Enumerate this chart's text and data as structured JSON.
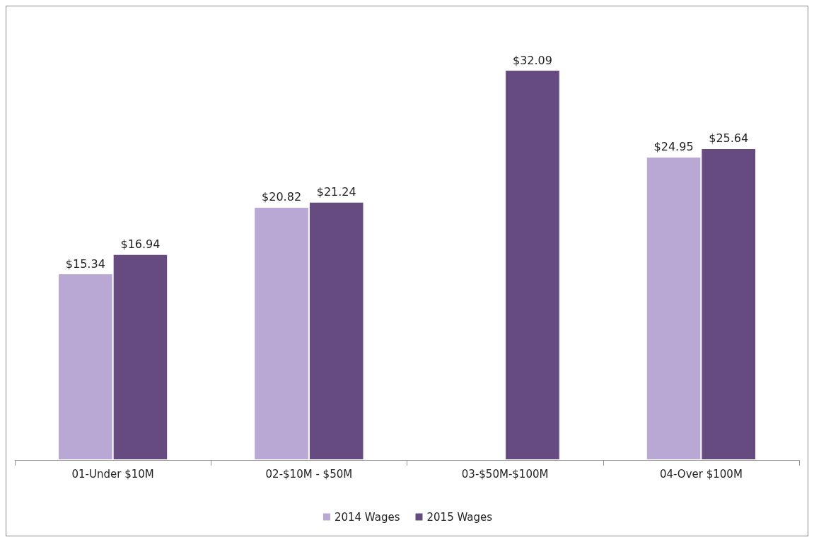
{
  "chart_data": {
    "type": "bar",
    "categories": [
      "01-Under $10M",
      "02-$10M - $50M",
      "03-$50M-$100M",
      "04-Over $100M"
    ],
    "series": [
      {
        "name": "2014 Wages",
        "color": "#b9a7d4",
        "values": [
          15.34,
          20.82,
          null,
          24.95
        ],
        "value_labels": [
          "$15.34",
          "$20.82",
          null,
          "$24.95"
        ]
      },
      {
        "name": "2015 Wages",
        "color": "#654b80",
        "values": [
          16.94,
          21.24,
          32.09,
          25.64
        ],
        "value_labels": [
          "$16.94",
          "$21.24",
          "$32.09",
          "$25.64"
        ]
      }
    ],
    "legend": "bottom"
  }
}
